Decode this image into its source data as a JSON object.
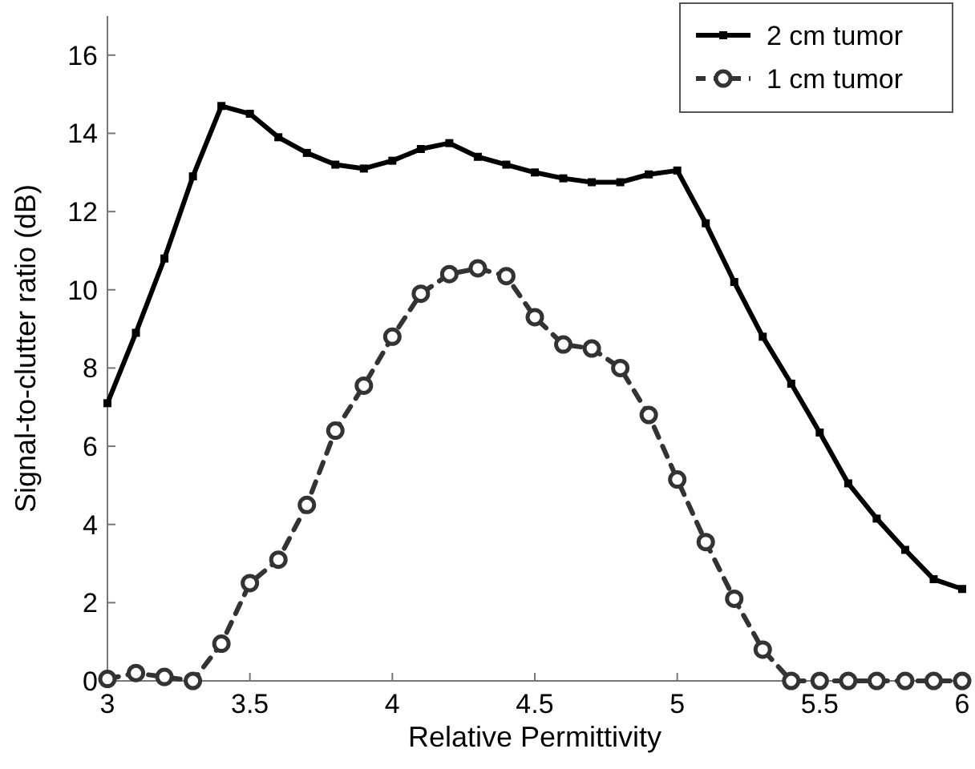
{
  "chart_data": {
    "type": "line",
    "xlabel": "Relative Permittivity",
    "ylabel": "Signal-to-clutter ratio (dB)",
    "x": [
      3,
      3.1,
      3.2,
      3.3,
      3.4,
      3.5,
      3.6,
      3.7,
      3.8,
      3.9,
      4,
      4.1,
      4.2,
      4.3,
      4.4,
      4.5,
      4.6,
      4.7,
      4.8,
      4.9,
      5,
      5.1,
      5.2,
      5.3,
      5.4,
      5.5,
      5.6,
      5.7,
      5.8,
      5.9,
      6
    ],
    "series": [
      {
        "name": "2 cm tumor",
        "color": "#000000",
        "marker": "square",
        "line_style": "solid",
        "values": [
          7.1,
          8.9,
          10.8,
          12.9,
          14.7,
          14.5,
          13.9,
          13.5,
          13.2,
          13.1,
          13.3,
          13.6,
          13.75,
          13.4,
          13.2,
          13.0,
          12.85,
          12.75,
          12.75,
          12.95,
          13.05,
          11.7,
          10.2,
          8.8,
          7.6,
          6.35,
          5.05,
          4.15,
          3.35,
          2.6,
          2.35
        ]
      },
      {
        "name": "1 cm tumor",
        "color": "#333333",
        "marker": "circle",
        "line_style": "dashed",
        "values": [
          0.05,
          0.2,
          0.1,
          0,
          0.95,
          2.5,
          3.1,
          4.5,
          6.4,
          7.55,
          8.8,
          9.9,
          10.4,
          10.55,
          10.35,
          9.3,
          8.6,
          8.5,
          8.0,
          6.8,
          5.15,
          3.55,
          2.1,
          0.8,
          0,
          0,
          0,
          0,
          0,
          0,
          0
        ]
      }
    ],
    "xlim": [
      3,
      6
    ],
    "xticks": [
      3,
      3.5,
      4,
      4.5,
      5,
      5.5,
      6
    ],
    "ylim": [
      0,
      17
    ],
    "yticks": [
      0,
      2,
      4,
      6,
      8,
      10,
      12,
      14,
      16
    ],
    "grid": false,
    "legend": "top right"
  }
}
